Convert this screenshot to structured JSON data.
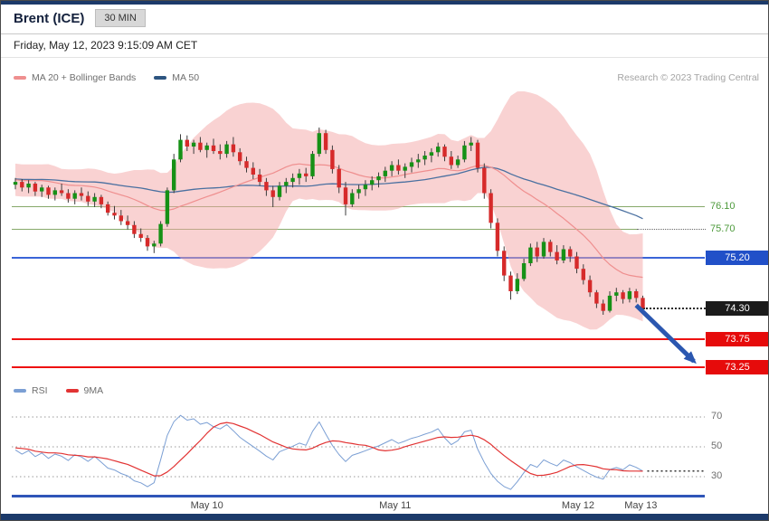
{
  "header": {
    "title": "Brent (ICE)",
    "timeframe": "30 MIN",
    "datetime": "Friday, May 12, 2023 9:15:09 AM CET",
    "copyright": "Research © 2023 Trading Central"
  },
  "legend": {
    "band_label": "MA 20 + Bollinger Bands",
    "ma50_label": "MA 50",
    "rsi_label": "RSI",
    "rsi_ma_label": "9MA"
  },
  "levels": {
    "r2": {
      "value": "76.10"
    },
    "r1": {
      "value": "75.70"
    },
    "pivot": {
      "value": "75.20"
    },
    "last": {
      "value": "74.30"
    },
    "s1": {
      "value": "73.75"
    },
    "s2": {
      "value": "73.25"
    }
  },
  "rsi_axis": {
    "t70": "70",
    "t50": "50",
    "t30": "30"
  },
  "colors": {
    "band_fill": "#f3a6a6",
    "ma20": "#ef8f8f",
    "ma50": "#4a70a0",
    "candle_up": "#169116",
    "candle_down": "#d62a2a",
    "wick": "#3c3c3c",
    "rsi": "#7b9fd4",
    "rsi_ma": "#e23333",
    "arrow": "#2b57b0",
    "resistance": "#86a96a",
    "resistance_text": "#4d9a3b",
    "pivot_line": "#3a64d8",
    "pivot_badge": "#2150c8",
    "support_line": "#ee1111",
    "support_badge": "#e60b0b",
    "last_badge": "#1b1b1b"
  },
  "chart_data": {
    "type": "candlestick",
    "title": "Brent (ICE) 30 MIN with MA20 + Bollinger Bands, MA50, RSI and 9MA of RSI",
    "ylim": [
      72.97,
      78.165
    ],
    "rsi_gridlines": [
      70,
      50,
      30
    ],
    "levels": {
      "r2": 76.1,
      "r1": 75.7,
      "pivot": 75.2,
      "last": 74.3,
      "s1": 73.75,
      "s2": 73.25
    },
    "arrow": {
      "from_price": 74.35,
      "to_price": 73.35,
      "direction": "down"
    },
    "x_ticks": [
      {
        "label": "May 10",
        "index": 29
      },
      {
        "label": "May 11",
        "index": 57.5
      },
      {
        "label": "May 12",
        "index": 85.2
      },
      {
        "label": "May 13",
        "index": 94.7
      }
    ],
    "pre_closes": [
      76.95,
      76.8,
      76.6,
      76.45,
      76.35,
      76.5,
      76.7,
      76.9,
      76.85,
      76.65,
      76.45,
      76.3,
      76.4,
      76.6,
      76.8,
      76.92,
      76.75,
      76.55,
      76.38,
      76.3,
      76.45,
      76.65,
      76.85,
      76.9,
      76.7,
      76.5,
      76.35,
      76.42,
      76.6,
      76.78,
      76.88,
      76.72,
      76.52,
      76.38,
      76.45,
      76.62,
      76.8,
      76.85,
      76.68,
      76.48,
      76.35,
      76.42,
      76.58,
      76.72,
      76.82,
      76.7,
      76.55,
      76.45,
      76.52,
      76.6
    ],
    "candles": [
      [
        76.5,
        76.62,
        76.42,
        76.55
      ],
      [
        76.55,
        76.6,
        76.38,
        76.45
      ],
      [
        76.45,
        76.58,
        76.35,
        76.52
      ],
      [
        76.52,
        76.55,
        76.3,
        76.38
      ],
      [
        76.38,
        76.5,
        76.28,
        76.45
      ],
      [
        76.45,
        76.48,
        76.25,
        76.32
      ],
      [
        76.32,
        76.45,
        76.22,
        76.4
      ],
      [
        76.4,
        76.52,
        76.3,
        76.35
      ],
      [
        76.35,
        76.42,
        76.18,
        76.25
      ],
      [
        76.25,
        76.4,
        76.15,
        76.35
      ],
      [
        76.35,
        76.45,
        76.22,
        76.3
      ],
      [
        76.3,
        76.38,
        76.12,
        76.2
      ],
      [
        76.2,
        76.35,
        76.1,
        76.28
      ],
      [
        76.28,
        76.32,
        76.08,
        76.15
      ],
      [
        76.15,
        76.2,
        75.95,
        76.0
      ],
      [
        76.0,
        76.12,
        75.88,
        75.95
      ],
      [
        75.95,
        76.05,
        75.78,
        75.85
      ],
      [
        75.85,
        75.95,
        75.7,
        75.78
      ],
      [
        75.78,
        75.85,
        75.55,
        75.62
      ],
      [
        75.62,
        75.72,
        75.48,
        75.55
      ],
      [
        75.55,
        75.6,
        75.32,
        75.4
      ],
      [
        75.4,
        75.5,
        75.28,
        75.45
      ],
      [
        75.45,
        75.85,
        75.4,
        75.8
      ],
      [
        75.8,
        76.45,
        75.75,
        76.4
      ],
      [
        76.4,
        77.05,
        76.35,
        76.95
      ],
      [
        76.95,
        77.4,
        76.9,
        77.3
      ],
      [
        77.3,
        77.38,
        77.1,
        77.18
      ],
      [
        77.18,
        77.3,
        77.05,
        77.25
      ],
      [
        77.25,
        77.35,
        77.08,
        77.12
      ],
      [
        77.12,
        77.25,
        76.98,
        77.2
      ],
      [
        77.2,
        77.32,
        77.05,
        77.1
      ],
      [
        77.1,
        77.22,
        76.95,
        77.05
      ],
      [
        77.05,
        77.28,
        76.98,
        77.22
      ],
      [
        77.22,
        77.35,
        77.0,
        77.08
      ],
      [
        77.08,
        77.15,
        76.85,
        76.92
      ],
      [
        76.92,
        77.0,
        76.72,
        76.8
      ],
      [
        76.8,
        76.9,
        76.6,
        76.68
      ],
      [
        76.68,
        76.78,
        76.48,
        76.55
      ],
      [
        76.55,
        76.62,
        76.3,
        76.4
      ],
      [
        76.4,
        76.48,
        76.1,
        76.28
      ],
      [
        76.28,
        76.55,
        76.22,
        76.48
      ],
      [
        76.48,
        76.62,
        76.35,
        76.55
      ],
      [
        76.55,
        76.7,
        76.45,
        76.62
      ],
      [
        76.62,
        76.78,
        76.5,
        76.7
      ],
      [
        76.7,
        76.8,
        76.55,
        76.65
      ],
      [
        76.65,
        77.1,
        76.6,
        77.05
      ],
      [
        77.05,
        77.52,
        77.0,
        77.42
      ],
      [
        77.42,
        77.48,
        77.05,
        77.12
      ],
      [
        77.12,
        77.2,
        76.7,
        76.78
      ],
      [
        76.78,
        76.85,
        76.35,
        76.45
      ],
      [
        76.45,
        76.55,
        75.95,
        76.15
      ],
      [
        76.15,
        76.42,
        76.1,
        76.35
      ],
      [
        76.35,
        76.5,
        76.25,
        76.42
      ],
      [
        76.42,
        76.58,
        76.3,
        76.5
      ],
      [
        76.5,
        76.65,
        76.4,
        76.58
      ],
      [
        76.58,
        76.72,
        76.45,
        76.65
      ],
      [
        76.65,
        76.82,
        76.55,
        76.75
      ],
      [
        76.75,
        76.92,
        76.65,
        76.85
      ],
      [
        76.85,
        76.95,
        76.68,
        76.75
      ],
      [
        76.75,
        76.88,
        76.62,
        76.82
      ],
      [
        76.82,
        76.98,
        76.72,
        76.9
      ],
      [
        76.9,
        77.05,
        76.8,
        76.95
      ],
      [
        76.95,
        77.1,
        76.85,
        77.02
      ],
      [
        77.02,
        77.15,
        76.9,
        77.08
      ],
      [
        77.08,
        77.25,
        77.0,
        77.18
      ],
      [
        77.18,
        77.22,
        76.92,
        77.0
      ],
      [
        77.0,
        77.1,
        76.78,
        76.85
      ],
      [
        76.85,
        77.02,
        76.8,
        76.95
      ],
      [
        76.95,
        77.28,
        76.9,
        77.2
      ],
      [
        77.2,
        77.35,
        77.1,
        77.25
      ],
      [
        77.25,
        77.3,
        76.72,
        76.8
      ],
      [
        76.8,
        76.88,
        76.25,
        76.35
      ],
      [
        76.35,
        76.42,
        75.72,
        75.82
      ],
      [
        75.82,
        75.9,
        75.22,
        75.32
      ],
      [
        75.32,
        75.4,
        74.78,
        74.88
      ],
      [
        74.88,
        74.95,
        74.45,
        74.6
      ],
      [
        74.6,
        74.92,
        74.55,
        74.82
      ],
      [
        74.82,
        75.18,
        74.78,
        75.1
      ],
      [
        75.1,
        75.45,
        75.05,
        75.38
      ],
      [
        75.38,
        75.48,
        75.12,
        75.22
      ],
      [
        75.22,
        75.55,
        75.18,
        75.48
      ],
      [
        75.48,
        75.52,
        75.22,
        75.3
      ],
      [
        75.3,
        75.42,
        75.08,
        75.15
      ],
      [
        75.15,
        75.42,
        75.1,
        75.35
      ],
      [
        75.35,
        75.4,
        75.12,
        75.22
      ],
      [
        75.22,
        75.3,
        74.92,
        75.0
      ],
      [
        75.0,
        75.08,
        74.72,
        74.8
      ],
      [
        74.8,
        74.88,
        74.5,
        74.58
      ],
      [
        74.58,
        74.62,
        74.3,
        74.38
      ],
      [
        74.38,
        74.45,
        74.18,
        74.25
      ],
      [
        74.25,
        74.6,
        74.22,
        74.52
      ],
      [
        74.52,
        74.66,
        74.42,
        74.58
      ],
      [
        74.58,
        74.62,
        74.38,
        74.46
      ],
      [
        74.46,
        74.66,
        74.4,
        74.6
      ],
      [
        74.6,
        74.64,
        74.4,
        74.48
      ],
      [
        74.48,
        74.52,
        74.26,
        74.3
      ]
    ]
  }
}
